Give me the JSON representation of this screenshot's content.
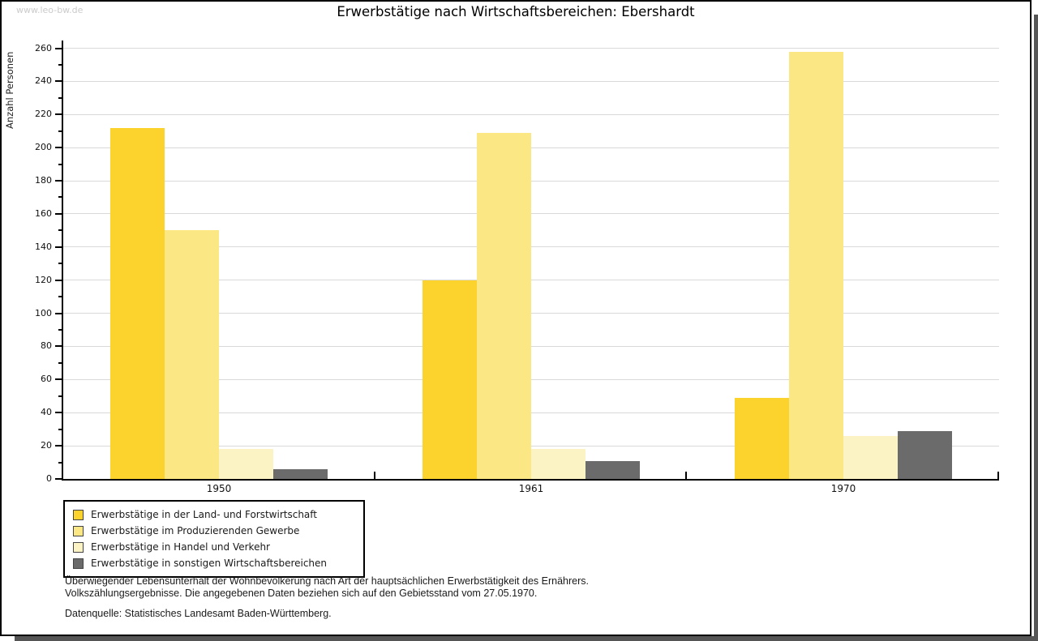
{
  "watermark": "www.leo-bw.de",
  "chart_data": {
    "type": "bar",
    "title": "Erwerbstätige nach Wirtschaftsbereichen: Ebershardt",
    "ylabel": "Anzahl Personen",
    "xlabel": "",
    "categories": [
      "1950",
      "1961",
      "1970"
    ],
    "series": [
      {
        "name": "Erwerbstätige in der Land- und Forstwirtschaft",
        "color": "#fbd32c",
        "values": [
          212,
          120,
          49
        ]
      },
      {
        "name": "Erwerbstätige im Produzierenden Gewerbe",
        "color": "#fbe784",
        "values": [
          150,
          209,
          258
        ]
      },
      {
        "name": "Erwerbstätige in Handel und Verkehr",
        "color": "#fbf3c4",
        "values": [
          18,
          18,
          26
        ]
      },
      {
        "name": "Erwerbstätige in sonstigen Wirtschaftsbereichen",
        "color": "#6b6b6b",
        "values": [
          6,
          11,
          29
        ]
      }
    ],
    "ylim": [
      0,
      260
    ],
    "ytick_step": 20,
    "yminor_step": 10,
    "grid": true,
    "legend_position": "bottom-left"
  },
  "colors": {
    "grid": "#d9d9d9",
    "axis": "#000000",
    "shadow": "#555555",
    "watermark": "#cbcbcb"
  },
  "footnote": {
    "line1": "Überwiegender Lebensunterhalt der Wohnbevölkerung nach Art der hauptsächlichen Erwerbstätigkeit des Ernährers.",
    "line2": "Volkszählungsergebnisse. Die angegebenen Daten beziehen sich auf den Gebietsstand vom 27.05.1970.",
    "source": "Datenquelle: Statistisches Landesamt Baden-Württemberg."
  }
}
